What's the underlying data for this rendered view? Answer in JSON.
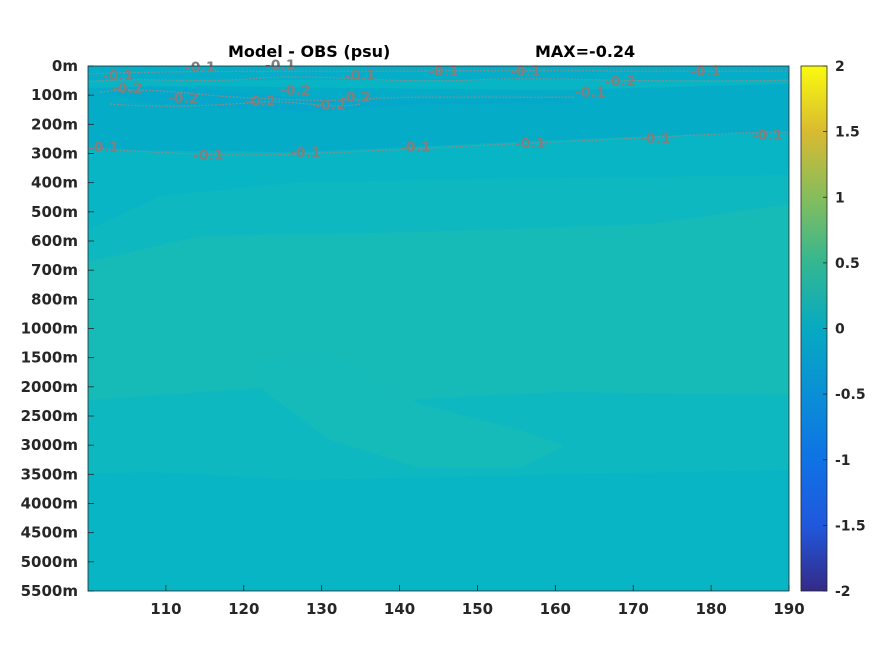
{
  "chart_data": {
    "type": "heatmap",
    "title": "Model - OBS (psu)",
    "title_right": "MAX=-0.24",
    "x": [
      100,
      190
    ],
    "x_ticks": [
      110,
      120,
      130,
      140,
      150,
      160,
      170,
      180,
      190
    ],
    "y_tick_labels": [
      "0m",
      "100m",
      "200m",
      "300m",
      "400m",
      "500m",
      "600m",
      "700m",
      "800m",
      "1000m",
      "1500m",
      "2000m",
      "2500m",
      "3000m",
      "3500m",
      "4000m",
      "4500m",
      "5000m",
      "5500m"
    ],
    "y_levels_m": [
      0,
      100,
      200,
      300,
      400,
      500,
      600,
      700,
      800,
      1000,
      1500,
      2000,
      2500,
      3000,
      3500,
      4000,
      4500,
      5000,
      5500
    ],
    "colorbar": {
      "colormap": "parula",
      "range": [
        -2,
        2
      ],
      "ticks": [
        2,
        1.5,
        1,
        0.5,
        0,
        -0.5,
        -1,
        -1.5,
        -2
      ],
      "tick_labels": [
        "2",
        "1.5",
        "1",
        "0.5",
        "0",
        "-0.5",
        "-1",
        "-1.5",
        "-2"
      ]
    },
    "field_levels": [
      -0.24,
      -0.1,
      0,
      0.05,
      0.1
    ],
    "field_colors": {
      "-0.24": "#04a8cb",
      "-0.1": "#04aec8",
      "0": "#07b5c5",
      "0.05": "#0db8c0",
      "0.1": "#17bcb6"
    },
    "contours": [
      {
        "level": -0.1,
        "labels": [
          "-0.1",
          "-0.1",
          "-0.1",
          "-0.1",
          "-0.1",
          "-0.1",
          "-0.1"
        ]
      },
      {
        "level": -0.2,
        "labels": [
          "-0.2",
          "-0.2",
          "-0.2",
          "-0.2",
          "-0.2",
          "-0.2",
          "-0.2"
        ]
      },
      {
        "level": -0.1,
        "labels": [
          "-0.1",
          "-0.1",
          "-0.1",
          "-0.1",
          "-0.1",
          "-0.1",
          "-0.1",
          "-0.1"
        ]
      }
    ],
    "contour_color": "#808080",
    "grid": false
  }
}
